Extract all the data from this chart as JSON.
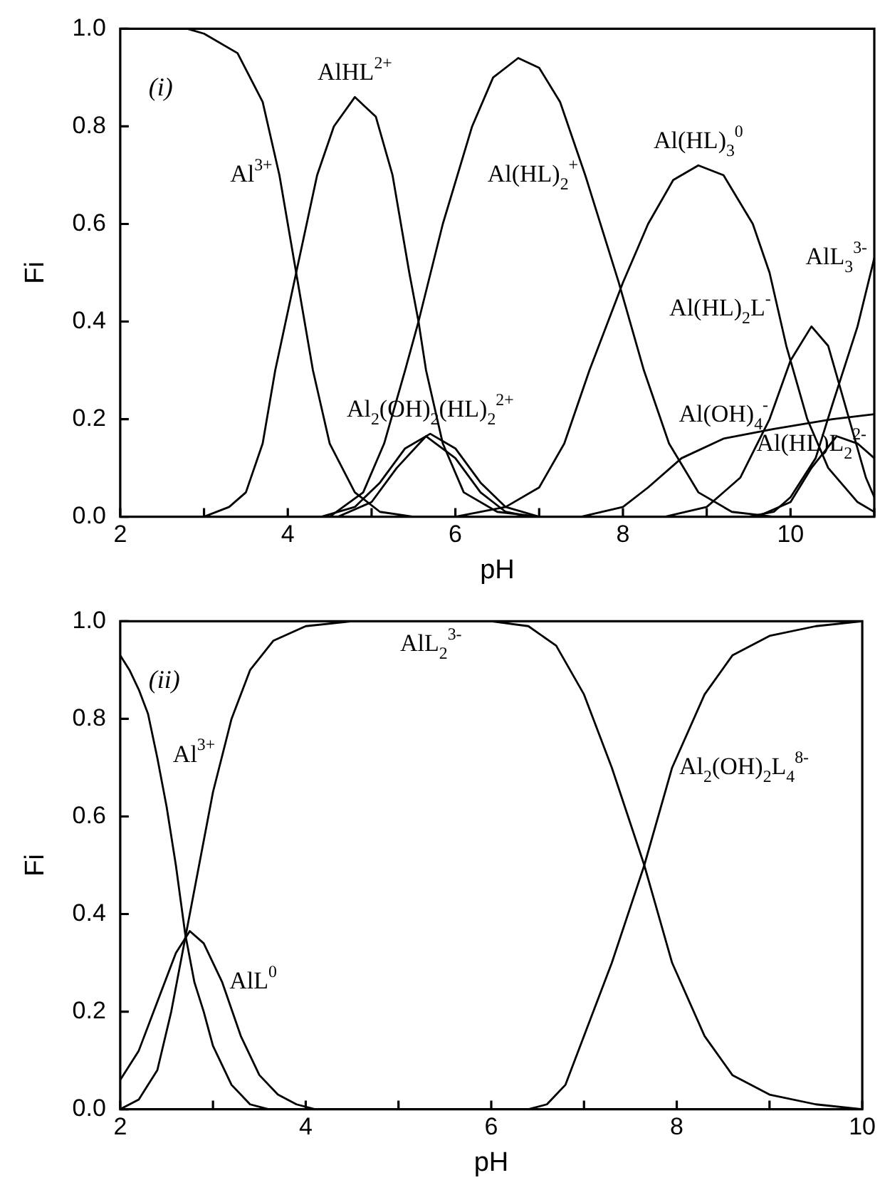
{
  "chart_data": [
    {
      "type": "line",
      "xlabel": "pH",
      "ylabel": "Fi",
      "xlim": [
        2,
        11
      ],
      "ylim": [
        0,
        1
      ],
      "xticks": [
        2,
        {
          "value": 3,
          "label": null
        },
        4,
        {
          "value": 5,
          "label": null
        },
        6,
        {
          "value": 7,
          "label": null
        },
        8,
        {
          "value": 9,
          "label": null
        },
        10,
        {
          "value": 11,
          "label": null
        }
      ],
      "yticks": [
        {
          "value": 0,
          "label": "0.0"
        },
        {
          "value": 0.2,
          "label": "0.2"
        },
        {
          "value": 0.4,
          "label": "0.4"
        },
        {
          "value": 0.6,
          "label": "0.6"
        },
        {
          "value": 0.8,
          "label": "0.8"
        },
        {
          "value": 1,
          "label": "1.0"
        }
      ],
      "series": [
        {
          "color": "#000000",
          "x": [
            2,
            2.8,
            3.0,
            3.4,
            3.7,
            3.9,
            4.1,
            4.3,
            4.5,
            4.8,
            5.1,
            5.5,
            11
          ],
          "values": [
            1,
            1,
            0.99,
            0.95,
            0.85,
            0.7,
            0.5,
            0.3,
            0.15,
            0.05,
            0.01,
            0,
            0
          ]
        },
        {
          "color": "#000000",
          "x": [
            2,
            3.0,
            3.3,
            3.5,
            3.7,
            3.85,
            4.1,
            4.35,
            4.55,
            4.8,
            5.05,
            5.25,
            5.45,
            5.56,
            5.65,
            5.85,
            6.1,
            6.5,
            7,
            11
          ],
          "values": [
            0,
            0,
            0.02,
            0.05,
            0.15,
            0.3,
            0.5,
            0.7,
            0.8,
            0.86,
            0.82,
            0.7,
            0.5,
            0.4,
            0.3,
            0.15,
            0.05,
            0.01,
            0,
            0
          ]
        },
        {
          "color": "#000000",
          "x": [
            2,
            4.5,
            4.9,
            5.15,
            5.4,
            5.56,
            5.85,
            6.2,
            6.45,
            6.75,
            7.0,
            7.25,
            7.55,
            7.95,
            8.25,
            8.55,
            8.9,
            9.3,
            9.8,
            11
          ],
          "values": [
            0,
            0,
            0.05,
            0.15,
            0.3,
            0.4,
            0.6,
            0.8,
            0.9,
            0.94,
            0.92,
            0.85,
            0.7,
            0.48,
            0.3,
            0.15,
            0.05,
            0.01,
            0,
            0
          ]
        },
        {
          "color": "#000000",
          "x": [
            2,
            6.0,
            6.6,
            7.0,
            7.3,
            7.6,
            8.0,
            8.3,
            8.6,
            8.9,
            9.2,
            9.55,
            9.75,
            9.95,
            10.2,
            10.45,
            10.8,
            11
          ],
          "values": [
            0,
            0,
            0.02,
            0.06,
            0.15,
            0.3,
            0.48,
            0.6,
            0.69,
            0.72,
            0.7,
            0.6,
            0.5,
            0.35,
            0.2,
            0.1,
            0.03,
            0.01
          ]
        },
        {
          "color": "#000000",
          "x": [
            2,
            9.5,
            9.8,
            10.0,
            10.3,
            10.5,
            10.8,
            11
          ],
          "values": [
            0,
            0,
            0.01,
            0.04,
            0.12,
            0.23,
            0.39,
            0.53
          ]
        },
        {
          "color": "#000000",
          "x": [
            2,
            8.5,
            9.0,
            9.4,
            9.75,
            10.0,
            10.25,
            10.45,
            10.7,
            10.9,
            11
          ],
          "values": [
            0,
            0,
            0.02,
            0.08,
            0.2,
            0.32,
            0.39,
            0.35,
            0.2,
            0.08,
            0.04
          ]
        },
        {
          "color": "#000000",
          "x": [
            2,
            7.5,
            8.0,
            8.3,
            8.7,
            9.2,
            9.8,
            10.5,
            11
          ],
          "values": [
            0,
            0,
            0.02,
            0.06,
            0.12,
            0.16,
            0.18,
            0.2,
            0.21
          ]
        },
        {
          "color": "#000000",
          "x": [
            2,
            9.6,
            10.0,
            10.25,
            10.55,
            10.8,
            11
          ],
          "values": [
            0,
            0,
            0.03,
            0.1,
            0.165,
            0.15,
            0.12
          ]
        },
        {
          "color": "#000000",
          "x": [
            2,
            4.4,
            4.8,
            5.1,
            5.4,
            5.7,
            6.0,
            6.3,
            6.6,
            7.0,
            11
          ],
          "values": [
            0,
            0,
            0.02,
            0.07,
            0.14,
            0.17,
            0.14,
            0.07,
            0.02,
            0,
            0
          ]
        },
        {
          "color": "#000000",
          "x": [
            2,
            4.6,
            5.0,
            5.3,
            5.65,
            6.0,
            6.3,
            6.6,
            6.9,
            11
          ],
          "values": [
            0,
            0,
            0.03,
            0.1,
            0.165,
            0.12,
            0.05,
            0.01,
            0,
            0
          ]
        }
      ],
      "annotations": [
        "(i)",
        {
          "text": "Al$^{3+}$",
          "x": 3.9,
          "y": 0.7
        },
        {
          "text": "AlHL$^{2+}$",
          "x": 4.8,
          "y": 0.86
        },
        {
          "text": "Al(HL)$_{2}$$^{+}$",
          "x": 7.55,
          "y": 0.7
        },
        {
          "text": "Al(HL)$_{3}$$^{0}$",
          "x": 8.9,
          "y": 0.72
        },
        {
          "text": "AlL$_{3}$$^{3-}$",
          "x": 11,
          "y": 0.53
        },
        {
          "text": "Al(HL)$_{2}$L$^{-}$",
          "x": 9.85,
          "y": 0.425
        },
        {
          "text": "Al$_{2}$(OH)$_{2}$(HL)$_{2}$$^{2+}$",
          "x": 5.7,
          "y": 0.17
        },
        {
          "text": "Al(OH)$_{4}$$^{-}$",
          "x": 9.2,
          "y": 0.16
        },
        {
          "text": "Al(HL)L$_{2}$$^{2-}$",
          "x": 10.25,
          "y": 0.1
        }
      ]
    },
    {
      "type": "line",
      "xlabel": "pH",
      "ylabel": "Fi",
      "xlim": [
        2,
        10
      ],
      "ylim": [
        0,
        1
      ],
      "xticks": [
        2,
        {
          "value": 3,
          "label": null
        },
        4,
        {
          "value": 5,
          "label": null
        },
        6,
        {
          "value": 7,
          "label": null
        },
        8,
        {
          "value": 9,
          "label": null
        },
        10
      ],
      "yticks": [
        {
          "value": 0,
          "label": "0.0"
        },
        {
          "value": 0.2,
          "label": "0.2"
        },
        {
          "value": 0.4,
          "label": "0.4"
        },
        {
          "value": 0.6,
          "label": "0.6"
        },
        {
          "value": 0.8,
          "label": "0.8"
        },
        {
          "value": 1,
          "label": "1.0"
        }
      ],
      "series": [
        {
          "color": "#000000",
          "x": [
            2.0,
            2.1,
            2.2,
            2.3,
            2.4,
            2.5,
            2.6,
            2.7,
            2.8,
            2.9,
            3.0,
            3.2,
            3.4,
            3.6,
            10
          ],
          "values": [
            0.93,
            0.9,
            0.86,
            0.81,
            0.72,
            0.62,
            0.5,
            0.36,
            0.26,
            0.2,
            0.13,
            0.05,
            0.01,
            0,
            0
          ]
        },
        {
          "color": "#000000",
          "x": [
            2.0,
            2.2,
            2.4,
            2.6,
            2.75,
            2.9,
            3.1,
            3.3,
            3.5,
            3.7,
            3.9,
            4.1,
            10
          ],
          "values": [
            0.06,
            0.12,
            0.22,
            0.32,
            0.365,
            0.34,
            0.26,
            0.15,
            0.07,
            0.03,
            0.01,
            0,
            0
          ]
        },
        {
          "color": "#000000",
          "x": [
            2.0,
            2.2,
            2.4,
            2.55,
            2.7,
            2.85,
            3.0,
            3.2,
            3.4,
            3.65,
            4.0,
            4.5,
            6.0,
            6.4,
            6.7,
            7.0,
            7.3,
            7.65,
            7.95,
            8.3,
            8.6,
            9.0,
            9.5,
            10
          ],
          "values": [
            0,
            0.02,
            0.08,
            0.2,
            0.35,
            0.5,
            0.65,
            0.8,
            0.9,
            0.96,
            0.99,
            1,
            1,
            0.99,
            0.95,
            0.85,
            0.7,
            0.5,
            0.3,
            0.15,
            0.07,
            0.03,
            0.01,
            0
          ]
        },
        {
          "color": "#000000",
          "x": [
            2,
            6.4,
            6.6,
            6.8,
            7.0,
            7.3,
            7.65,
            7.95,
            8.3,
            8.6,
            9.0,
            9.5,
            10
          ],
          "values": [
            0,
            0,
            0.01,
            0.05,
            0.15,
            0.3,
            0.5,
            0.7,
            0.85,
            0.93,
            0.97,
            0.99,
            1
          ]
        }
      ],
      "annotations": [
        "(ii)",
        {
          "text": "Al$^{3+}$",
          "x": 3.1,
          "y": 0.725
        },
        {
          "text": "AlL$^{0}$",
          "x": 3.1,
          "y": 0.26
        },
        {
          "text": "AlL$_{2}$$^{3-}$",
          "x": 5.35,
          "y": 1
        },
        {
          "text": "Al$_{2}$(OH)$_{2}$L$_{4}$$^{8-}$",
          "x": 7.95,
          "y": 0.7
        }
      ]
    }
  ]
}
